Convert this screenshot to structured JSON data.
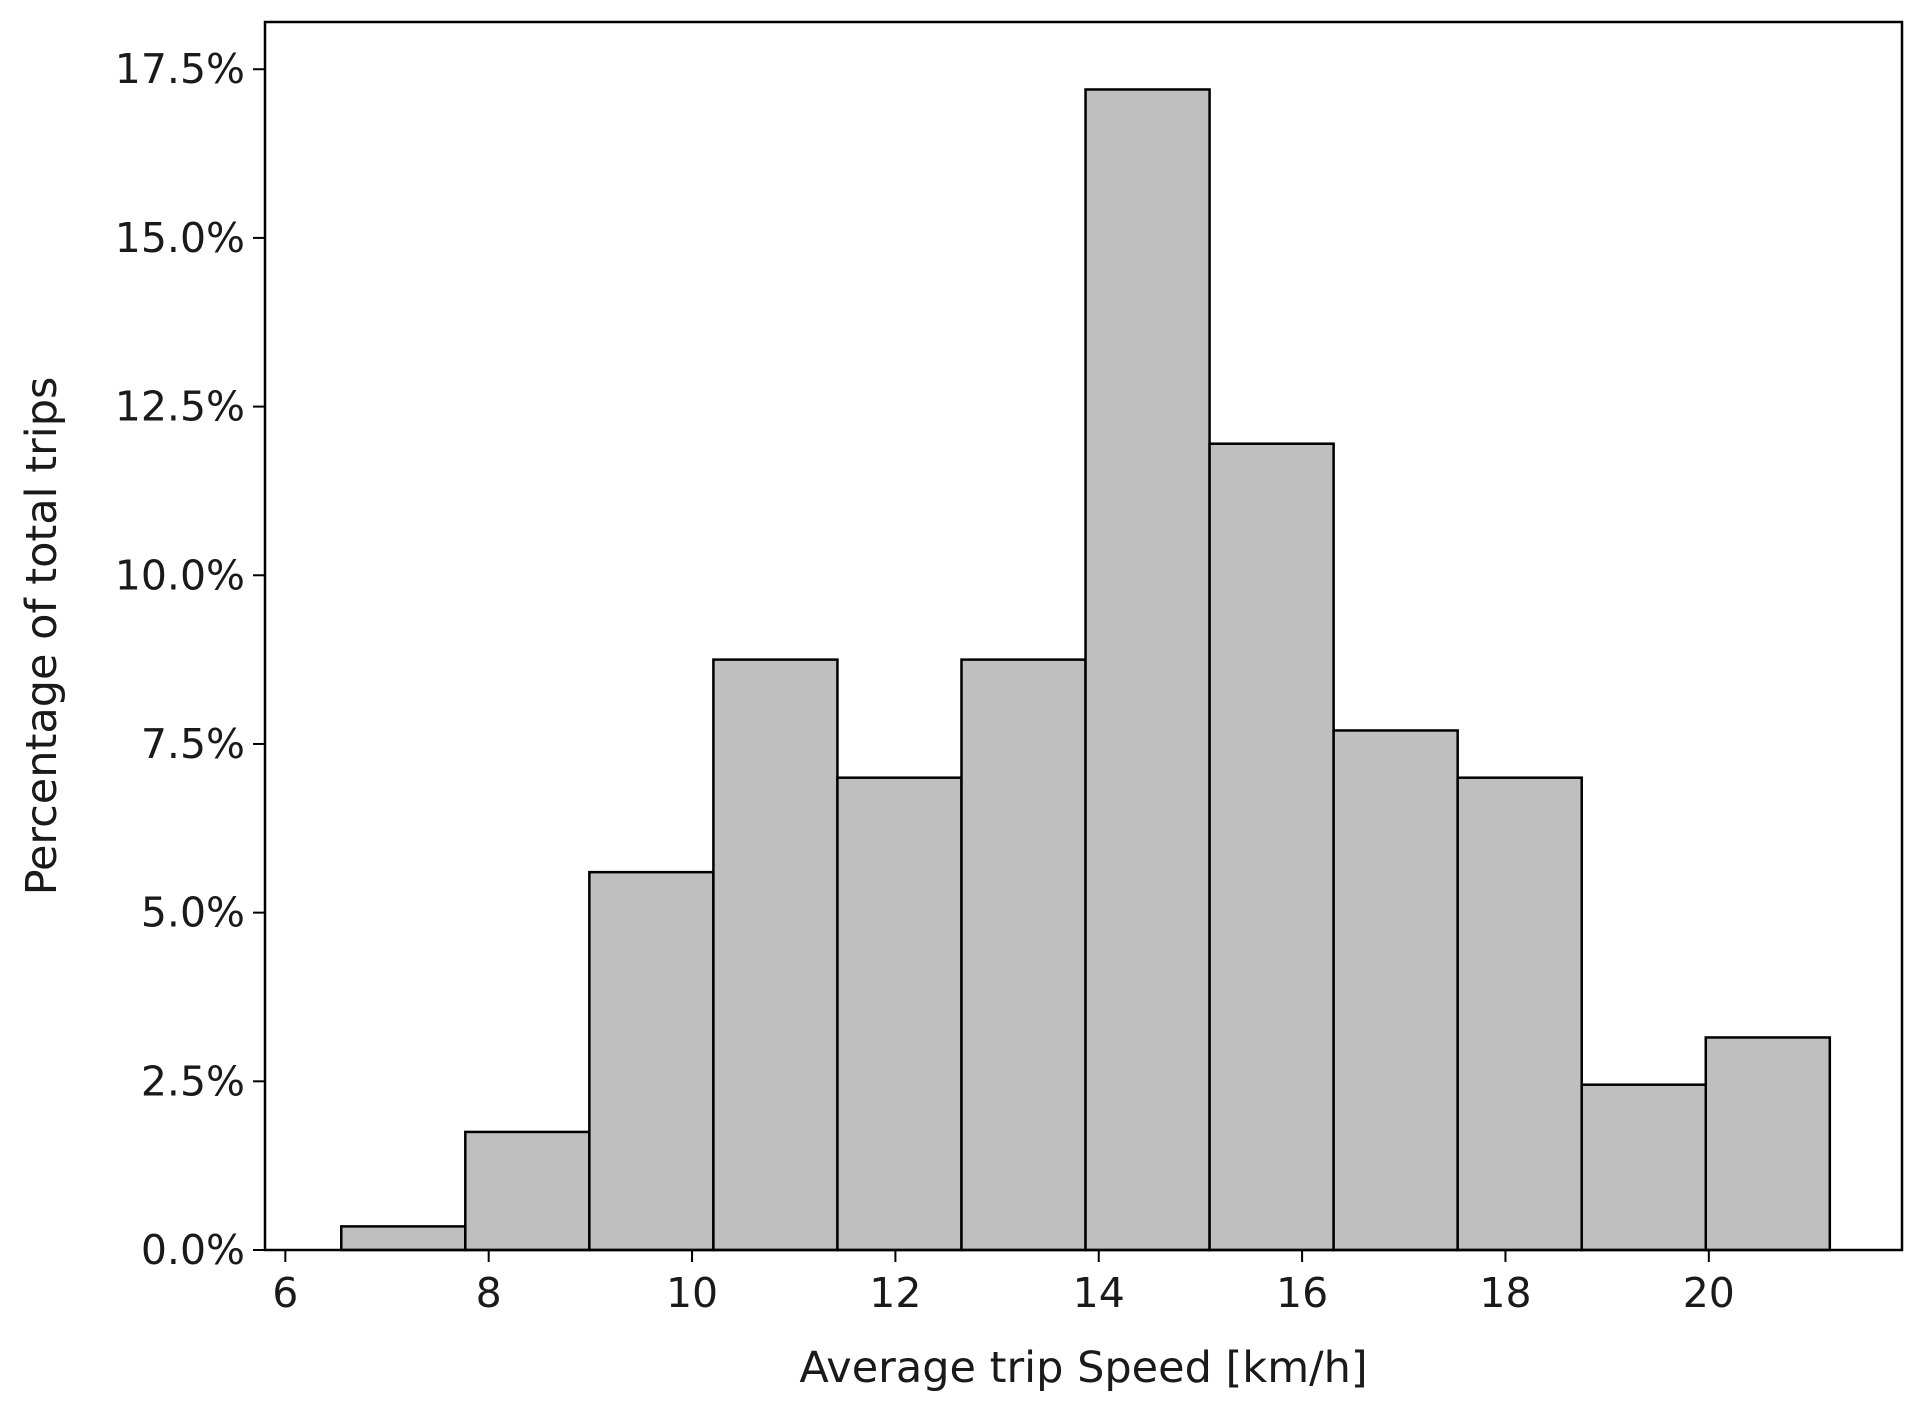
{
  "chart_data": {
    "type": "bar",
    "title": "",
    "xlabel": "Average trip Speed [km/h]",
    "ylabel": "Percentage of total trips",
    "xlim": [
      5.8,
      21.9
    ],
    "ylim": [
      0,
      18.2
    ],
    "x_ticks": [
      6,
      8,
      10,
      12,
      14,
      16,
      18,
      20
    ],
    "y_ticks": [
      0,
      2.5,
      5.0,
      7.5,
      10.0,
      12.5,
      15.0,
      17.5
    ],
    "y_tick_labels": [
      "0.0%",
      "2.5%",
      "5.0%",
      "7.5%",
      "10.0%",
      "12.5%",
      "15.0%",
      "17.5%"
    ],
    "bin_edges": [
      6.55,
      7.77,
      8.99,
      10.21,
      11.43,
      12.65,
      13.87,
      15.09,
      16.31,
      17.53,
      18.75,
      19.97,
      21.19
    ],
    "values": [
      0.35,
      1.75,
      5.6,
      8.75,
      7.0,
      8.75,
      17.2,
      11.95,
      7.7,
      7.0,
      2.45,
      3.15
    ],
    "grid": false,
    "colors": {
      "bar_fill": "#bfbfbf",
      "bar_edge": "#000000",
      "axes": "#000000"
    }
  }
}
